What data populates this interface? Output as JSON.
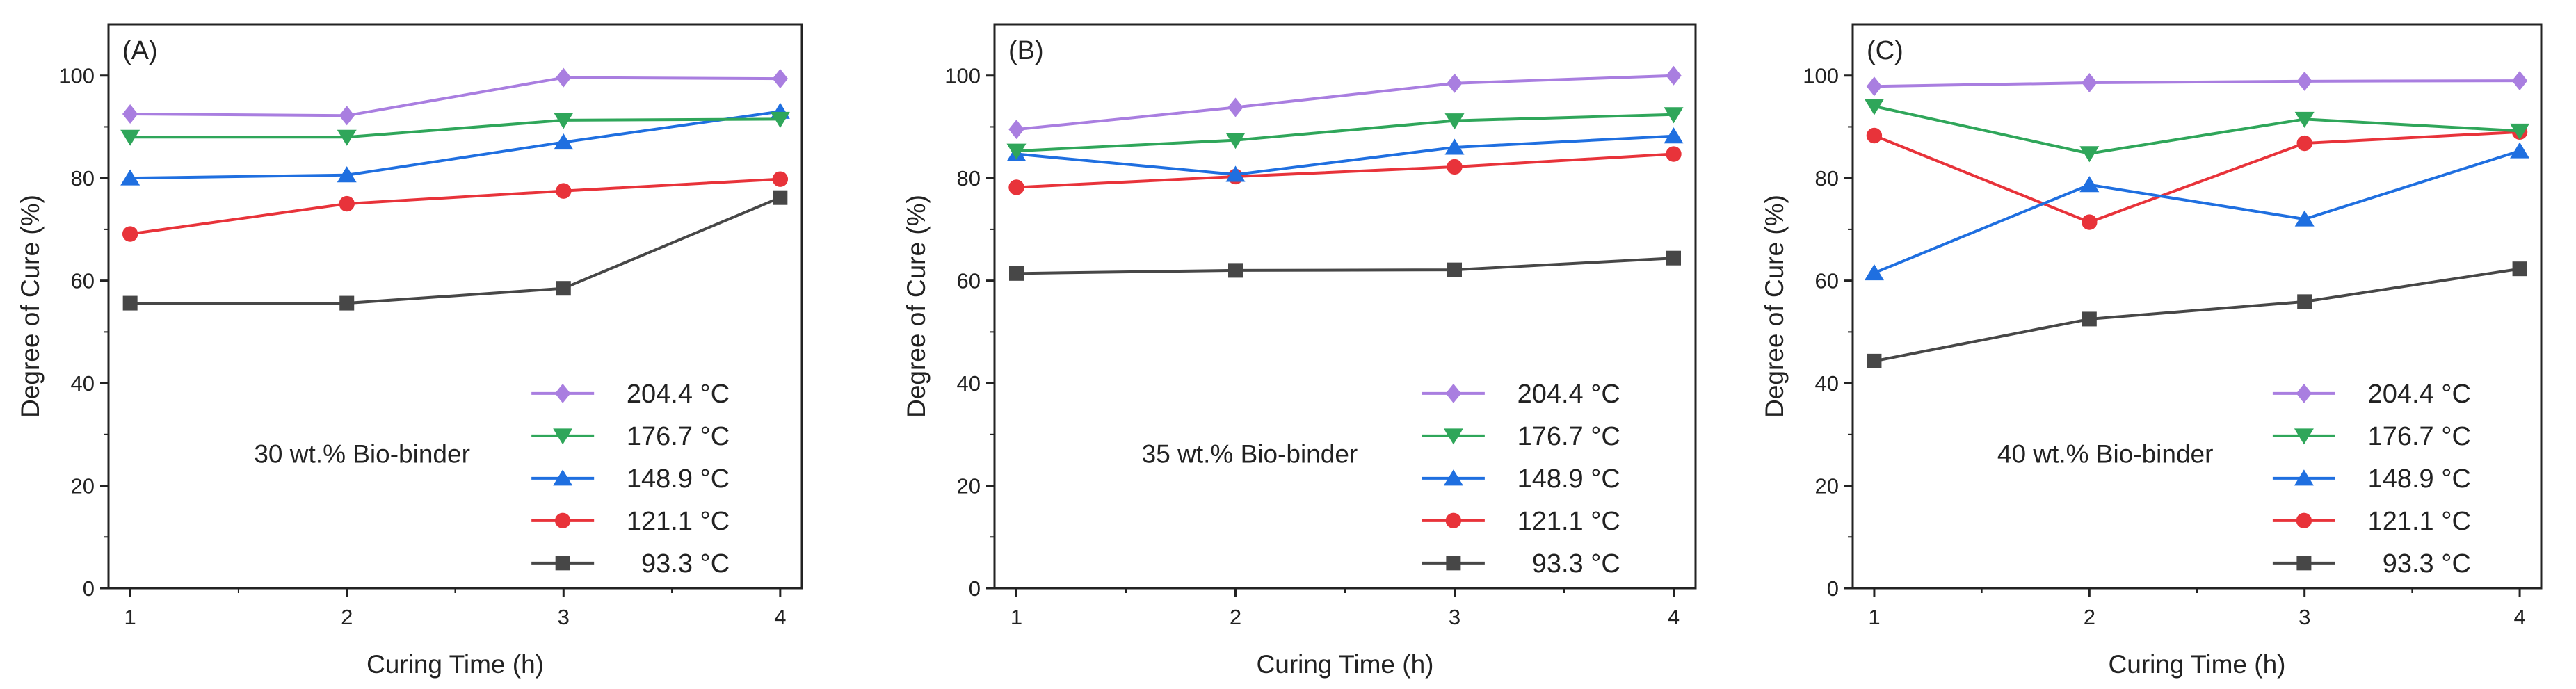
{
  "chart_data": [
    {
      "type": "line",
      "panel_label": "(A)",
      "annotation": "30 wt.% Bio-binder",
      "xlabel": "Curing Time (h)",
      "ylabel": "Degree of Cure (%)",
      "x": [
        1,
        2,
        3,
        4
      ],
      "xticks": [
        "1",
        "2",
        "3",
        "4"
      ],
      "yticks": [
        "0",
        "20",
        "40",
        "60",
        "80",
        "100"
      ],
      "xlim": [
        0.9,
        4.1
      ],
      "ylim": [
        0,
        110
      ],
      "legend_position": "lower-right",
      "series": [
        {
          "name": "204.4 °C",
          "marker": "diamond",
          "color": "#a97ee0",
          "values": [
            92.5,
            92.2,
            99.6,
            99.4
          ]
        },
        {
          "name": "176.7 °C",
          "marker": "triangle-down",
          "color": "#2fa65a",
          "values": [
            88.0,
            88.0,
            91.3,
            91.5
          ]
        },
        {
          "name": "148.9 °C",
          "marker": "triangle-up",
          "color": "#1f6fe0",
          "values": [
            80.0,
            80.6,
            87.0,
            93.0
          ]
        },
        {
          "name": "121.1 °C",
          "marker": "circle",
          "color": "#e8333a",
          "values": [
            69.1,
            75.0,
            77.5,
            79.8
          ]
        },
        {
          "name": "93.3 °C",
          "marker": "square",
          "color": "#474747",
          "values": [
            55.6,
            55.6,
            58.5,
            76.2
          ]
        }
      ]
    },
    {
      "type": "line",
      "panel_label": "(B)",
      "annotation": "35 wt.% Bio-binder",
      "xlabel": "Curing Time (h)",
      "ylabel": "Degree of Cure (%)",
      "x": [
        1,
        2,
        3,
        4
      ],
      "xticks": [
        "1",
        "2",
        "3",
        "4"
      ],
      "yticks": [
        "0",
        "20",
        "40",
        "60",
        "80",
        "100"
      ],
      "xlim": [
        0.9,
        4.1
      ],
      "ylim": [
        0,
        110
      ],
      "legend_position": "lower-right",
      "series": [
        {
          "name": "204.4 °C",
          "marker": "diamond",
          "color": "#a97ee0",
          "values": [
            89.5,
            93.8,
            98.5,
            100.0
          ]
        },
        {
          "name": "176.7 °C",
          "marker": "triangle-down",
          "color": "#2fa65a",
          "values": [
            85.3,
            87.4,
            91.2,
            92.4
          ]
        },
        {
          "name": "148.9 °C",
          "marker": "triangle-up",
          "color": "#1f6fe0",
          "values": [
            84.7,
            80.7,
            86.0,
            88.2
          ]
        },
        {
          "name": "121.1 °C",
          "marker": "circle",
          "color": "#e8333a",
          "values": [
            78.2,
            80.3,
            82.2,
            84.7
          ]
        },
        {
          "name": "93.3 °C",
          "marker": "square",
          "color": "#474747",
          "values": [
            61.4,
            62.0,
            62.1,
            64.4
          ]
        }
      ]
    },
    {
      "type": "line",
      "panel_label": "(C)",
      "annotation": "40 wt.% Bio-binder",
      "xlabel": "Curing Time (h)",
      "ylabel": "Degree of Cure (%)",
      "x": [
        1,
        2,
        3,
        4
      ],
      "xticks": [
        "1",
        "2",
        "3",
        "4"
      ],
      "yticks": [
        "0",
        "20",
        "40",
        "60",
        "80",
        "100"
      ],
      "xlim": [
        0.9,
        4.1
      ],
      "ylim": [
        0,
        110
      ],
      "legend_position": "lower-right",
      "series": [
        {
          "name": "204.4 °C",
          "marker": "diamond",
          "color": "#a97ee0",
          "values": [
            97.9,
            98.6,
            98.9,
            99.0
          ]
        },
        {
          "name": "176.7 °C",
          "marker": "triangle-down",
          "color": "#2fa65a",
          "values": [
            94.0,
            84.8,
            91.5,
            89.2
          ]
        },
        {
          "name": "148.9 °C",
          "marker": "triangle-up",
          "color": "#1f6fe0",
          "values": [
            61.5,
            78.7,
            72.0,
            85.3
          ]
        },
        {
          "name": "121.1 °C",
          "marker": "circle",
          "color": "#e8333a",
          "values": [
            88.3,
            71.4,
            86.8,
            89.0
          ]
        },
        {
          "name": "93.3 °C",
          "marker": "square",
          "color": "#474747",
          "values": [
            44.3,
            52.5,
            55.9,
            62.3
          ]
        }
      ]
    }
  ]
}
